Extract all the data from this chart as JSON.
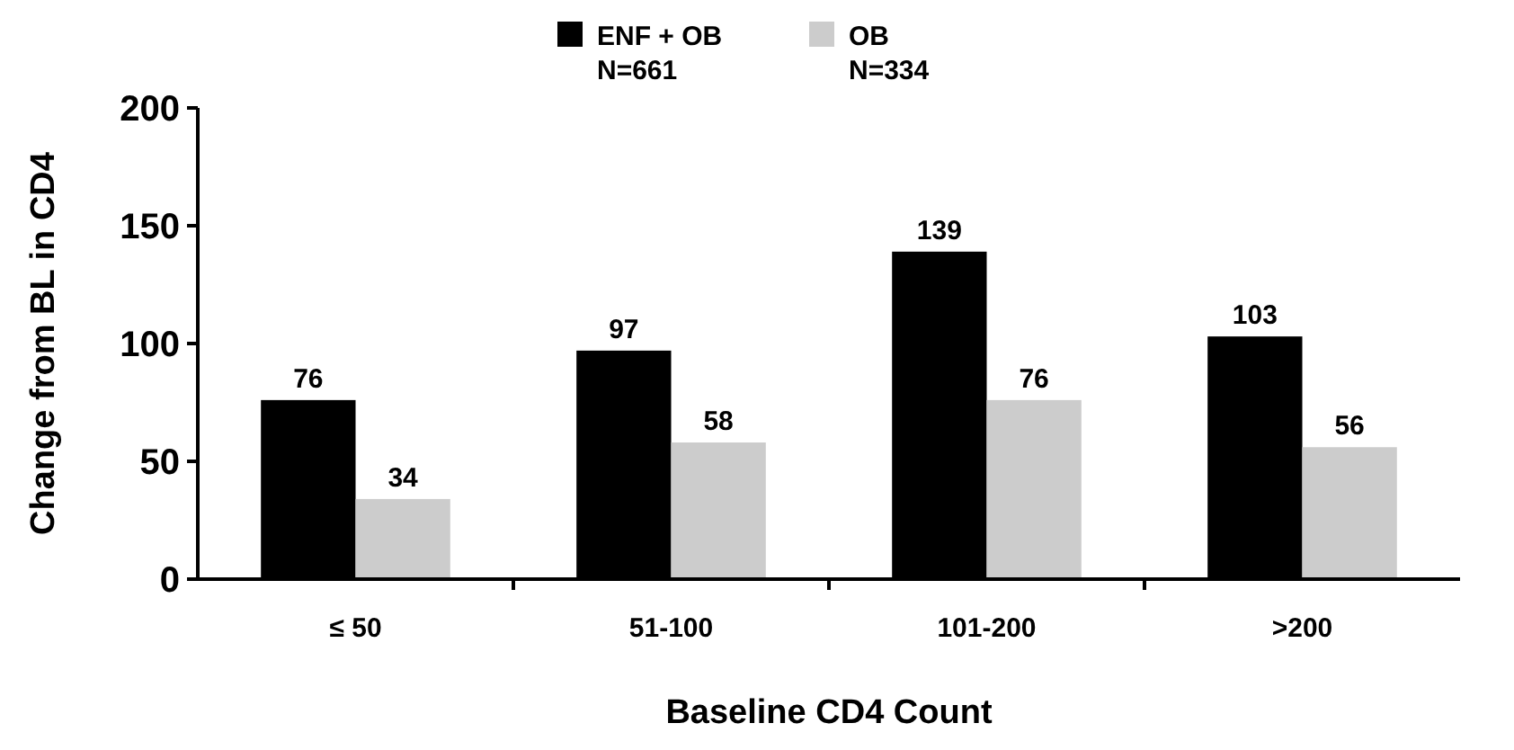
{
  "chart_data": {
    "type": "bar",
    "xlabel": "Baseline CD4 Count",
    "ylabel": "Change from BL in CD4",
    "categories": [
      "≤ 50",
      "51-100",
      "101-200",
      ">200"
    ],
    "series": [
      {
        "name": "ENF + OB\nN=661",
        "color": "#000000",
        "values": [
          76,
          97,
          139,
          103
        ]
      },
      {
        "name": "OB\nN=334",
        "color": "#cccccc",
        "values": [
          34,
          58,
          76,
          56
        ]
      }
    ],
    "ylim": [
      0,
      200
    ],
    "yticks": [
      0,
      50,
      100,
      150,
      200
    ],
    "grid": false,
    "legend": "top",
    "data_labels": true
  }
}
